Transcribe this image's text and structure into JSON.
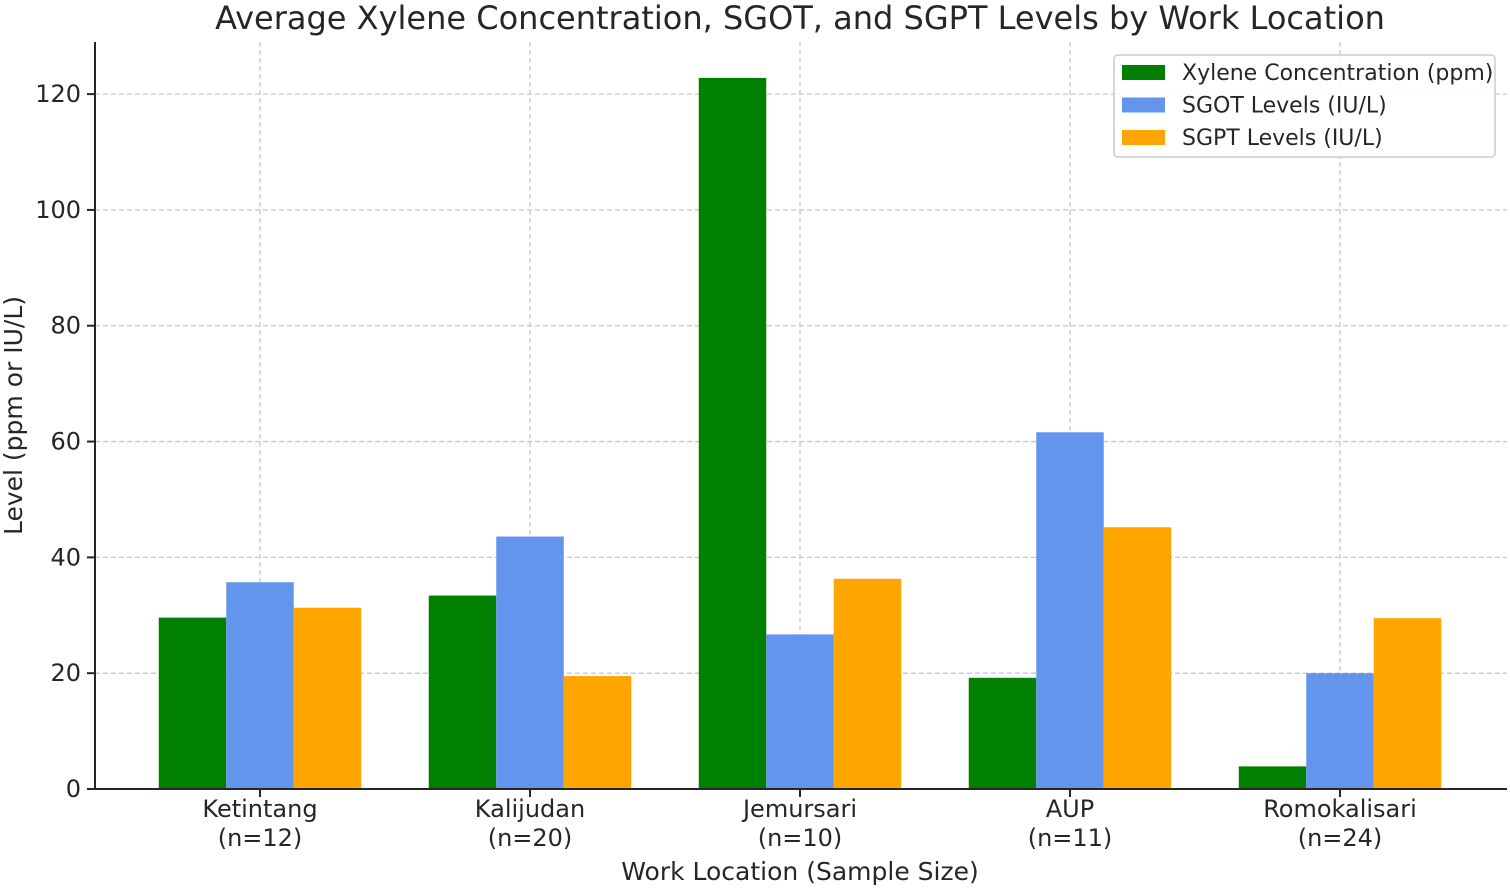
{
  "chart_data": {
    "type": "bar",
    "title": "Average Xylene Concentration, SGOT, and SGPT Levels by Work Location",
    "xlabel": "Work Location (Sample Size)",
    "ylabel": "Level (ppm or IU/L)",
    "categories": [
      [
        "Ketintang",
        "(n=12)"
      ],
      [
        "Kalijudan",
        "(n=20)"
      ],
      [
        "Jemursari",
        "(n=10)"
      ],
      [
        "AUP",
        "(n=11)"
      ],
      [
        "Romokalisari",
        "(n=24)"
      ]
    ],
    "series": [
      {
        "name": "Xylene Concentration (ppm)",
        "color": "#008000",
        "values": [
          29.6,
          33.4,
          122.8,
          19.2,
          3.9
        ]
      },
      {
        "name": "SGOT Levels (IU/L)",
        "color": "#6495ED",
        "values": [
          35.7,
          43.6,
          26.7,
          61.6,
          20.0
        ]
      },
      {
        "name": "SGPT Levels (IU/L)",
        "color": "#FFA500",
        "values": [
          31.3,
          19.5,
          36.3,
          45.2,
          29.5
        ]
      }
    ],
    "ylim": [
      0,
      129
    ],
    "yticks": [
      0,
      20,
      40,
      60,
      80,
      100,
      120
    ],
    "grid": true,
    "legend_position": "top-right"
  }
}
